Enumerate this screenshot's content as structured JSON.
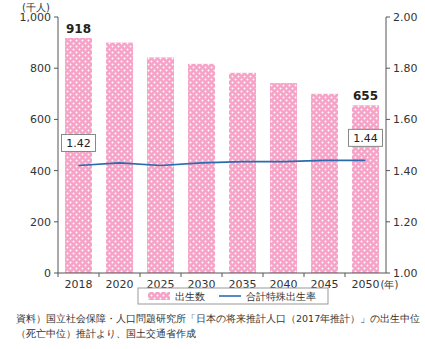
{
  "chart_data": {
    "type": "bar",
    "y_label": "(千人)",
    "x_label": "(年)",
    "source": [
      "資料）国立社会保障・人口問題研究所「日本の将来推計人口（2017年推計）」の出生中位",
      "（死亡中位）推計より、国土交通省作成"
    ],
    "categories": [
      "2018",
      "2020",
      "2025",
      "2030",
      "2035",
      "2040",
      "2045",
      "2050"
    ],
    "series": [
      {
        "name": "出生数",
        "type": "bar",
        "color": "#f5a3c7",
        "values": [
          918,
          900,
          842,
          817,
          782,
          742,
          700,
          655
        ],
        "value_labels": [
          "918",
          null,
          null,
          null,
          null,
          null,
          null,
          "655"
        ]
      },
      {
        "name": "合計特殊出生率",
        "type": "line",
        "axis": "y2",
        "color": "#2b6cb0",
        "marker": "none",
        "line_style": "solid",
        "values": [
          1.42,
          1.43,
          1.42,
          1.43,
          1.435,
          1.435,
          1.44,
          1.44
        ],
        "value_labels": [
          "1.42",
          null,
          null,
          null,
          null,
          null,
          null,
          "1.44"
        ]
      }
    ],
    "ylim": [
      0,
      1000
    ],
    "yticks": [
      0,
      200,
      400,
      600,
      800,
      {
        "value": 1000,
        "label": "1,000"
      }
    ],
    "y2lim": [
      1,
      2
    ],
    "y2ticks": [
      {
        "value": 1,
        "label": "1.00"
      },
      {
        "value": 1.2,
        "label": "1.20"
      },
      {
        "value": 1.4,
        "label": "1.40"
      },
      {
        "value": 1.6,
        "label": "1.60"
      },
      {
        "value": 1.8,
        "label": "1.80"
      },
      {
        "value": 2,
        "label": "2.00"
      }
    ],
    "grid": false,
    "data_labels": true,
    "legend": "bottom"
  }
}
